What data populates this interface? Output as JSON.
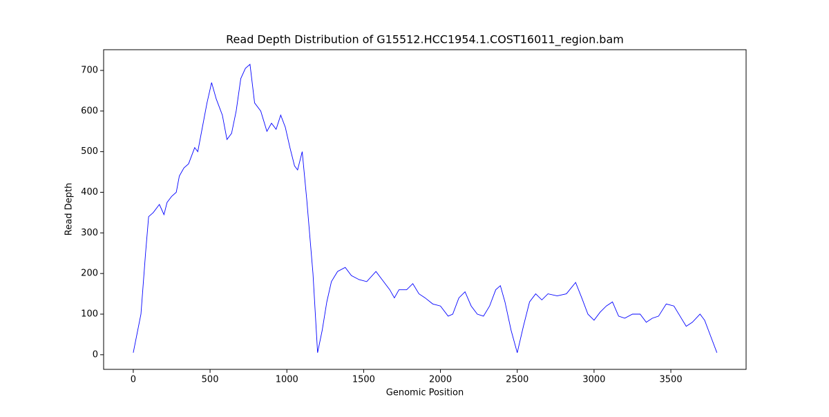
{
  "chart_data": {
    "type": "line",
    "title": "Read Depth Distribution of G15512.HCC1954.1.COST16011_region.bam",
    "x_label": "Genomic Position",
    "y_label": "Read Depth",
    "x": [
      0,
      50,
      80,
      100,
      130,
      170,
      200,
      220,
      250,
      280,
      300,
      330,
      360,
      400,
      420,
      450,
      480,
      510,
      540,
      580,
      610,
      640,
      670,
      700,
      730,
      760,
      790,
      830,
      870,
      900,
      930,
      960,
      990,
      1020,
      1050,
      1070,
      1100,
      1130,
      1170,
      1200,
      1230,
      1260,
      1290,
      1330,
      1380,
      1420,
      1470,
      1520,
      1580,
      1620,
      1670,
      1700,
      1730,
      1780,
      1820,
      1860,
      1900,
      1950,
      2000,
      2050,
      2080,
      2120,
      2160,
      2200,
      2240,
      2280,
      2320,
      2360,
      2390,
      2420,
      2460,
      2500,
      2540,
      2580,
      2620,
      2660,
      2700,
      2760,
      2820,
      2880,
      2920,
      2960,
      3000,
      3040,
      3080,
      3120,
      3160,
      3200,
      3250,
      3300,
      3340,
      3380,
      3420,
      3470,
      3520,
      3560,
      3600,
      3640,
      3690,
      3720,
      3760,
      3800
    ],
    "series": [
      {
        "name": "Read Depth",
        "color": "#0000ff",
        "values": [
          5,
          100,
          250,
          340,
          350,
          370,
          345,
          375,
          390,
          400,
          440,
          460,
          470,
          510,
          500,
          560,
          620,
          670,
          630,
          590,
          530,
          545,
          600,
          680,
          705,
          715,
          620,
          600,
          550,
          570,
          555,
          590,
          560,
          510,
          465,
          455,
          500,
          380,
          200,
          5,
          60,
          130,
          180,
          205,
          215,
          195,
          185,
          180,
          205,
          185,
          160,
          140,
          160,
          160,
          175,
          150,
          140,
          125,
          120,
          95,
          100,
          140,
          155,
          120,
          100,
          95,
          120,
          160,
          170,
          130,
          60,
          5,
          70,
          130,
          150,
          135,
          150,
          145,
          150,
          178,
          140,
          100,
          85,
          105,
          120,
          130,
          95,
          90,
          100,
          100,
          80,
          90,
          95,
          125,
          120,
          95,
          70,
          80,
          100,
          85,
          45,
          5
        ]
      }
    ],
    "xlim": [
      -193,
      3990
    ],
    "ylim": [
      -36,
      751
    ],
    "xticks": [
      0,
      500,
      1000,
      1500,
      2000,
      2500,
      3000,
      3500
    ],
    "yticks": [
      0,
      100,
      200,
      300,
      400,
      500,
      600,
      700
    ]
  }
}
